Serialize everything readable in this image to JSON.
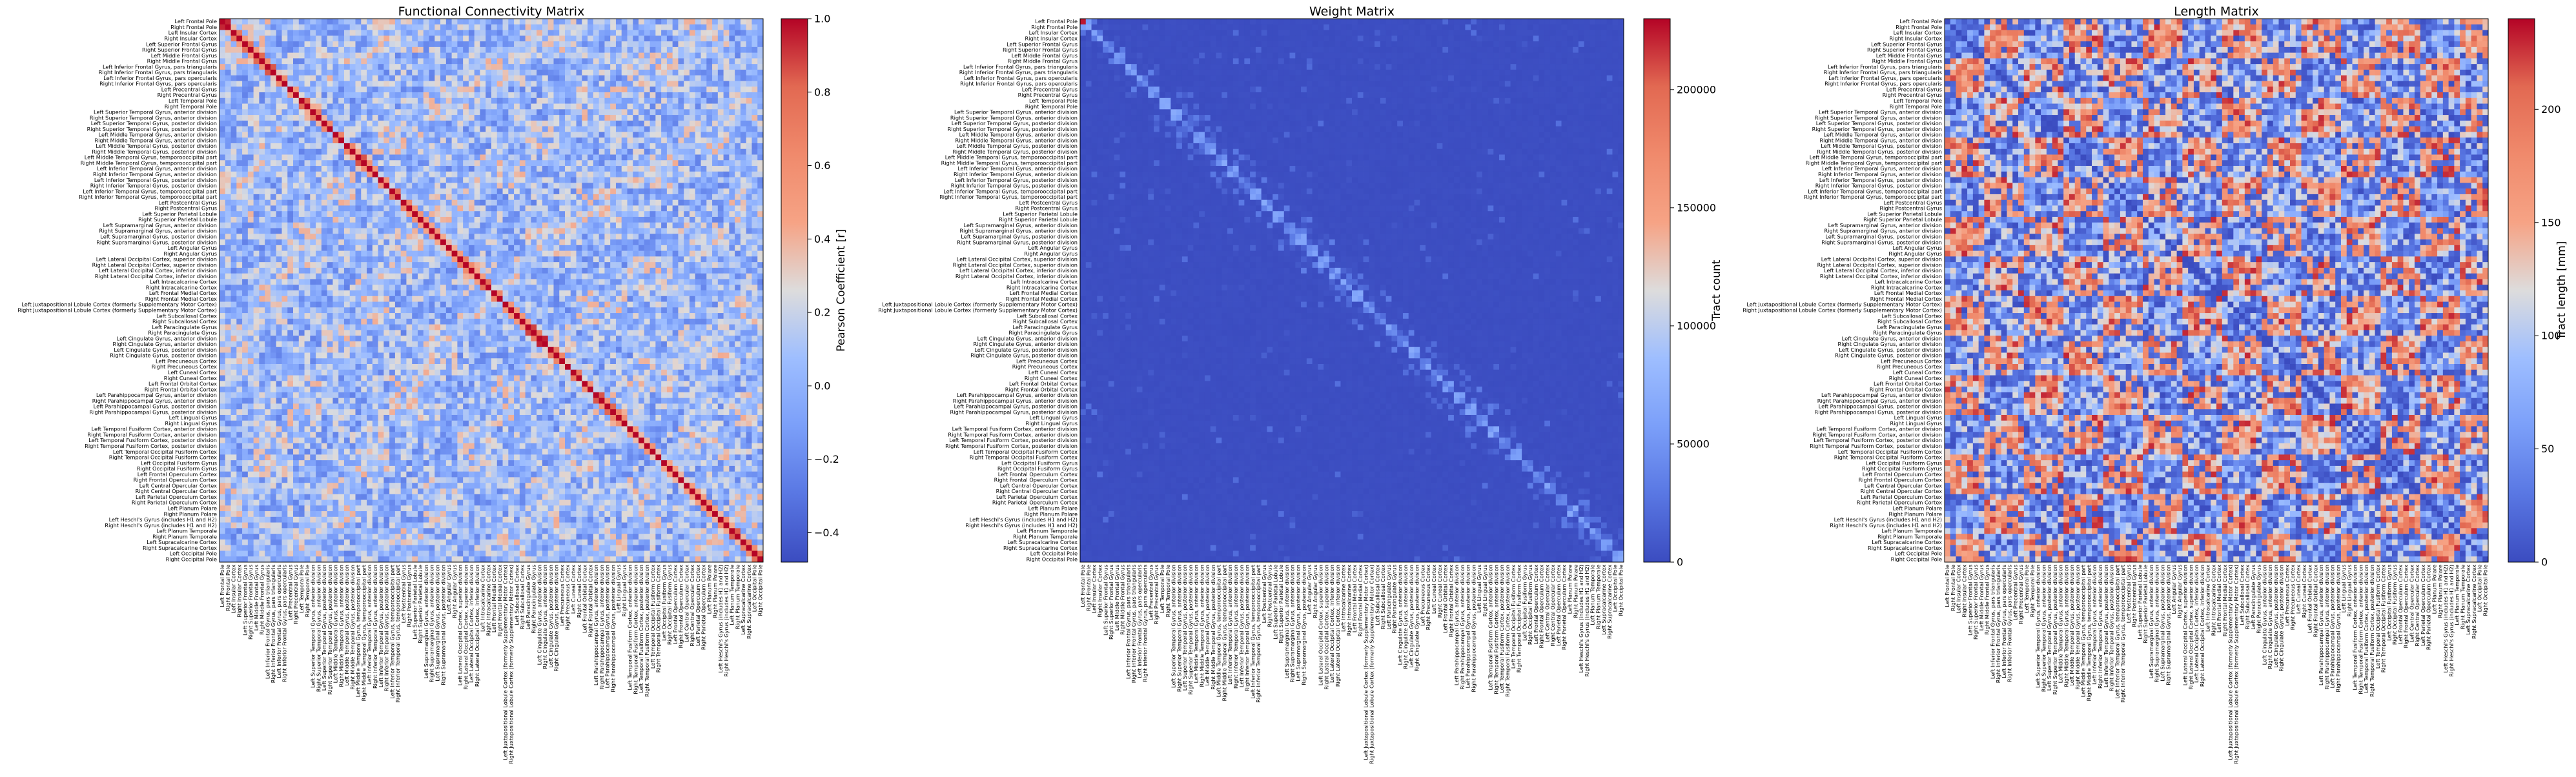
{
  "chart_data": [
    {
      "type": "heatmap",
      "title": "Functional Connectivity Matrix",
      "colorbar_label": "Pearson Coefficient [r]",
      "colormap": "coolwarm",
      "vmin": -0.48,
      "vmax": 1.0,
      "colorbar_ticks": [
        "1.0",
        "0.8",
        "0.6",
        "0.4",
        "0.2",
        "0.0",
        "−0.2",
        "−0.4"
      ],
      "colorbar_tick_values": [
        1.0,
        0.8,
        0.6,
        0.4,
        0.2,
        0.0,
        -0.2,
        -0.4
      ],
      "diagonal_value": 1.0,
      "pattern": "mixed weak correlations, mostly -0.3 to 0.5, with bright diagonal"
    },
    {
      "type": "heatmap",
      "title": "Weight Matrix",
      "colorbar_label": "Tract count",
      "colormap": "coolwarm",
      "vmin": 0,
      "vmax": 230000,
      "colorbar_ticks": [
        "200000",
        "150000",
        "100000",
        "50000",
        "0"
      ],
      "colorbar_tick_values": [
        200000,
        150000,
        100000,
        50000,
        0
      ],
      "diagonal_value": 60000,
      "pattern": "mostly near zero, sparse faint entries close to the diagonal; top-left element near maximum"
    },
    {
      "type": "heatmap",
      "title": "Length Matrix",
      "colorbar_label": "Tract length [mm]",
      "colormap": "coolwarm",
      "vmin": 0,
      "vmax": 240,
      "colorbar_ticks": [
        "200",
        "150",
        "100",
        "50",
        "0"
      ],
      "colorbar_tick_values": [
        200,
        150,
        100,
        50,
        0
      ],
      "diagonal_value": 0,
      "pattern": "blocky mix of lengths between 0 and 240 mm, zero diagonal"
    }
  ],
  "regions": [
    "Left Frontal Pole",
    "Right Frontal Pole",
    "Left Insular Cortex",
    "Right Insular Cortex",
    "Left Superior Frontal Gyrus",
    "Right Superior Frontal Gyrus",
    "Left Middle Frontal Gyrus",
    "Right Middle Frontal Gyrus",
    "Left Inferior Frontal Gyrus, pars triangularis",
    "Right Inferior Frontal Gyrus, pars triangularis",
    "Left Inferior Frontal Gyrus, pars opercularis",
    "Right Inferior Frontal Gyrus, pars opercularis",
    "Left Precentral Gyrus",
    "Right Precentral Gyrus",
    "Left Temporal Pole",
    "Right Temporal Pole",
    "Left Superior Temporal Gyrus, anterior division",
    "Right Superior Temporal Gyrus, anterior division",
    "Left Superior Temporal Gyrus, posterior division",
    "Right Superior Temporal Gyrus, posterior division",
    "Left Middle Temporal Gyrus, anterior division",
    "Right Middle Temporal Gyrus, anterior division",
    "Left Middle Temporal Gyrus, posterior division",
    "Right Middle Temporal Gyrus, posterior division",
    "Left Middle Temporal Gyrus, temporooccipital part",
    "Right Middle Temporal Gyrus, temporooccipital part",
    "Left Inferior Temporal Gyrus, anterior division",
    "Right Inferior Temporal Gyrus, anterior division",
    "Left Inferior Temporal Gyrus, posterior division",
    "Right Inferior Temporal Gyrus, posterior division",
    "Left Inferior Temporal Gyrus, temporooccipital part",
    "Right Inferior Temporal Gyrus, temporooccipital part",
    "Left Postcentral Gyrus",
    "Right Postcentral Gyrus",
    "Left Superior Parietal Lobule",
    "Right Superior Parietal Lobule",
    "Left Supramarginal Gyrus, anterior division",
    "Right Supramarginal Gyrus, anterior division",
    "Left Supramarginal Gyrus, posterior division",
    "Right Supramarginal Gyrus, posterior division",
    "Left Angular Gyrus",
    "Right Angular Gyrus",
    "Left Lateral Occipital Cortex, superior division",
    "Right Lateral Occipital Cortex, superior division",
    "Left Lateral Occipital Cortex, inferior division",
    "Right Lateral Occipital Cortex, inferior division",
    "Left Intracalcarine Cortex",
    "Right Intracalcarine Cortex",
    "Left Frontal Medial Cortex",
    "Right Frontal Medial Cortex",
    "Left Juxtapositional Lobule Cortex (formerly Supplementary Motor Cortex)",
    "Right Juxtapositional Lobule Cortex (formerly Supplementary Motor Cortex)",
    "Left Subcallosal Cortex",
    "Right Subcallosal Cortex",
    "Left Paracingulate Gyrus",
    "Right Paracingulate Gyrus",
    "Left Cingulate Gyrus, anterior division",
    "Right Cingulate Gyrus, anterior division",
    "Left Cingulate Gyrus, posterior division",
    "Right Cingulate Gyrus, posterior division",
    "Left Precuneous Cortex",
    "Right Precuneous Cortex",
    "Left Cuneal Cortex",
    "Right Cuneal Cortex",
    "Left Frontal Orbital Cortex",
    "Right Frontal Orbital Cortex",
    "Left Parahippocampal Gyrus, anterior division",
    "Right Parahippocampal Gyrus, anterior division",
    "Left Parahippocampal Gyrus, posterior division",
    "Right Parahippocampal Gyrus, posterior division",
    "Left Lingual Gyrus",
    "Right Lingual Gyrus",
    "Left Temporal Fusiform Cortex, anterior division",
    "Right Temporal Fusiform Cortex, anterior division",
    "Left Temporal Fusiform Cortex, posterior division",
    "Right Temporal Fusiform Cortex, posterior division",
    "Left Temporal Occipital Fusiform Cortex",
    "Right Temporal Occipital Fusiform Cortex",
    "Left Occipital Fusiform Gyrus",
    "Right Occipital Fusiform Gyrus",
    "Left Frontal Operculum Cortex",
    "Right Frontal Operculum Cortex",
    "Left Central Opercular Cortex",
    "Right Central Opercular Cortex",
    "Left Parietal Operculum Cortex",
    "Right Parietal Operculum Cortex",
    "Left Planum Polare",
    "Right Planum Polare",
    "Left Heschl's Gyrus (includes H1 and H2)",
    "Right Heschl's Gyrus (includes H1 and H2)",
    "Left Planum Temporale",
    "Right Planum Temporale",
    "Left Supracalcarine Cortex",
    "Right Supracalcarine Cortex",
    "Left Occipital Pole",
    "Right Occipital Pole"
  ]
}
